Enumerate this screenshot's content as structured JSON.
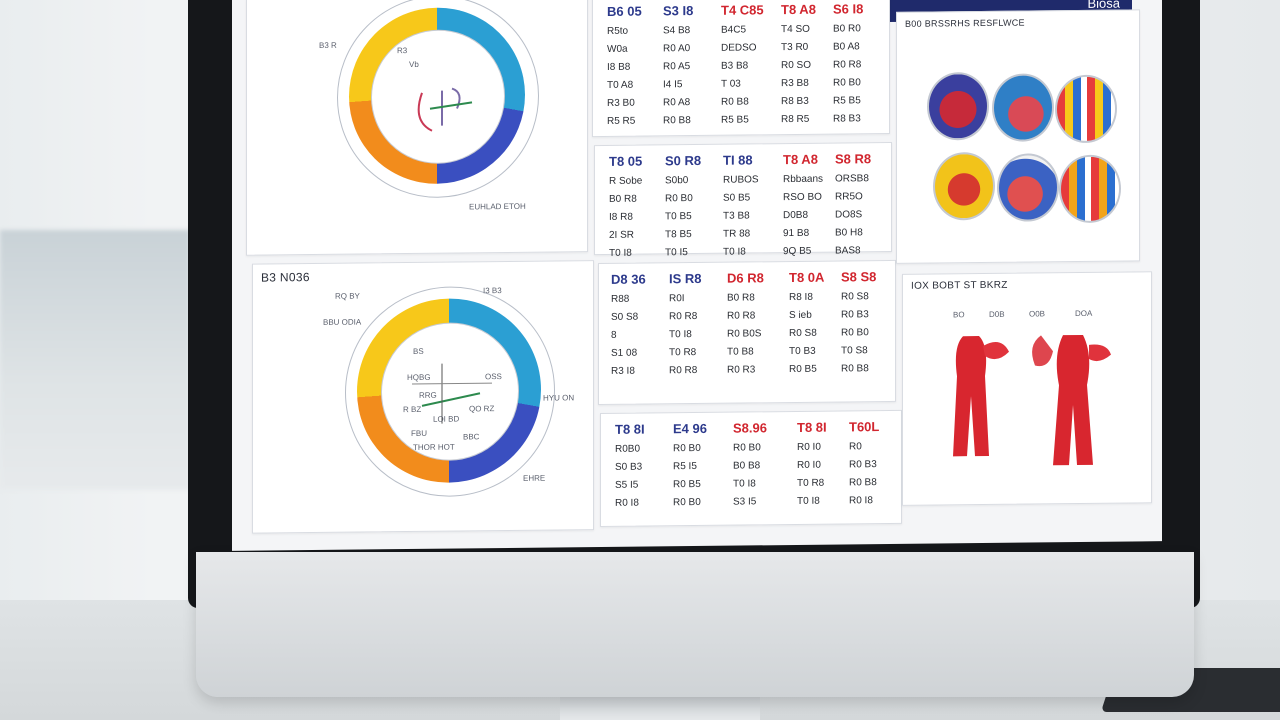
{
  "screen_title": "Biosa",
  "panels": {
    "donut_top": {
      "labels": [
        "B3 R",
        "R3",
        "Vb",
        "EUHLAD ETOH"
      ]
    },
    "donut_bottom": {
      "title": "B3 N036",
      "labels": [
        "RQ BY",
        "I3 B3",
        "BBU ODIA",
        "BS",
        "HQBG",
        "OSS",
        "RRG",
        "HYU ON",
        "R BZ",
        "QO RZ",
        "LOI BD",
        "FBU",
        "BBC",
        "THOR HOT",
        "EHRE"
      ]
    },
    "table_1": {
      "columns": [
        {
          "head": "B6 05",
          "color": "blue",
          "cells": [
            "R5to",
            "W0a",
            "I8 B8",
            "T0 A8",
            "R3 B0",
            "R5 R5"
          ]
        },
        {
          "head": "S3 I8",
          "color": "blue",
          "cells": [
            "S4 B8",
            "R0 A0",
            "R0 A5",
            "I4 I5",
            "R0 A8",
            "R0 B8"
          ]
        },
        {
          "head": "T4 C85",
          "color": "red",
          "cells": [
            "B4C5",
            "DEDSO",
            "B3 B8",
            "T 03",
            "R0 B8",
            "R5 B5"
          ]
        },
        {
          "head": "T8 A8",
          "color": "red",
          "cells": [
            "T4 SO",
            "T3 R0",
            "R0 SO",
            "R3 B8",
            "R8 B3",
            "R8 R5"
          ]
        },
        {
          "head": "S6 I8",
          "color": "red",
          "cells": [
            "B0 R0",
            "B0 A8",
            "R0 R8",
            "R0 B0",
            "R5 B5",
            "R8 B3"
          ]
        }
      ]
    },
    "table_2": {
      "columns": [
        {
          "head": "T8 05",
          "color": "blue",
          "cells": [
            "R Sobe",
            "B0 R8",
            "I8 R8",
            "2I SR",
            "T0 I8"
          ]
        },
        {
          "head": "S0 R8",
          "color": "blue",
          "cells": [
            "S0b0",
            "R0 B0",
            "T0 B5",
            "T8 B5",
            "T0 I5"
          ]
        },
        {
          "head": "TI 88",
          "color": "blue",
          "cells": [
            "RUBOS",
            "S0 B5",
            "T3 B8",
            "TR 88",
            "T0 I8"
          ]
        },
        {
          "head": "T8 A8",
          "color": "red",
          "cells": [
            "Rbbaans",
            "RSO BO",
            "D0B8",
            "91 B8",
            "9Q B5"
          ]
        },
        {
          "head": "S8 R8",
          "color": "red",
          "cells": [
            "ORSB8",
            "RR5O",
            "DO8S",
            "B0 H8",
            "BAS8"
          ]
        }
      ]
    },
    "table_3": {
      "columns": [
        {
          "head": "D8 36",
          "color": "blue",
          "cells": [
            "R88",
            "S0 S8",
            "8",
            "S1 08",
            "R3 I8"
          ]
        },
        {
          "head": "IS R8",
          "color": "blue",
          "cells": [
            "R0I",
            "R0 R8",
            "T0 I8",
            "T0 R8",
            "R0 R8"
          ]
        },
        {
          "head": "D6 R8",
          "color": "red",
          "cells": [
            "B0 R8",
            "R0 R8",
            "R0 B0S",
            "T0 B8",
            "R0 R3"
          ]
        },
        {
          "head": "T8 0A",
          "color": "red",
          "cells": [
            "R8 I8",
            "S ieb",
            "R0 S8",
            "T0 B3",
            "R0 B5"
          ]
        },
        {
          "head": "S8 S8",
          "color": "red",
          "cells": [
            "R0 S8",
            "R0 B3",
            "R0 B0",
            "T0 S8",
            "R0 B8"
          ]
        }
      ]
    },
    "table_4": {
      "columns": [
        {
          "head": "T8 8I",
          "color": "blue",
          "cells": [
            "R0B0",
            "S0 B3",
            "S5 I5",
            "R0 I8"
          ]
        },
        {
          "head": "E4 96",
          "color": "blue",
          "cells": [
            "R0 B0",
            "R5 I5",
            "R0 B5",
            "R0 B0"
          ]
        },
        {
          "head": "S8.96",
          "color": "red",
          "cells": [
            "R0 B0",
            "B0 B8",
            "T0 I8",
            "S3 I5"
          ]
        },
        {
          "head": "T8 8I",
          "color": "red",
          "cells": [
            "R0 I0",
            "R0 I0",
            "T0 R8",
            "T0 I8"
          ]
        },
        {
          "head": "T60L",
          "color": "red",
          "cells": [
            "R0",
            "R0 B3",
            "R0 B8",
            "R0 I8"
          ]
        }
      ]
    },
    "images_panel": {
      "title": "B00 BRSSRHS RESFLWCE"
    },
    "anatomy_panel": {
      "title": "IOX BOBT ST BKRZ",
      "labels": [
        "BO",
        "D0B",
        "O0B",
        "DOA"
      ]
    }
  },
  "colors": {
    "navy": "#1f2a6b",
    "blue_text": "#2d3a8c",
    "red_text": "#d1262f",
    "donut_cyan": "#2b9fd3",
    "donut_indigo": "#3a4fc0",
    "donut_orange": "#f28c1c",
    "donut_yellow": "#f7c81a"
  }
}
